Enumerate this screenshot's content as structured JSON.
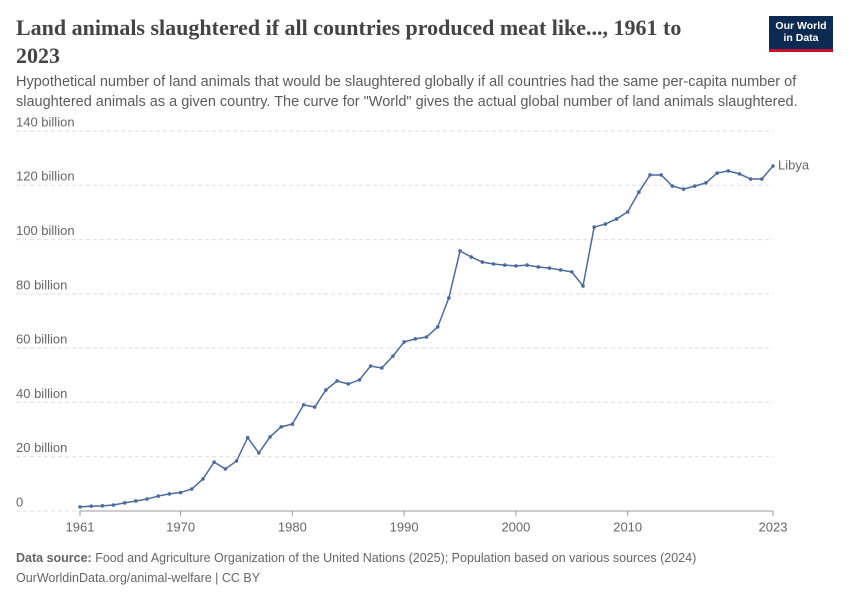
{
  "chart_data": {
    "type": "line",
    "title": "Land animals slaughtered if all countries produced meat like..., 1961 to 2023",
    "subtitle": "Hypothetical number of land animals that would be slaughtered globally if all countries had the same per-capita number of slaughtered animals as a given country. The curve for \"World\" gives the actual global number of land animals slaughtered.",
    "logo": [
      "Our World",
      "in Data"
    ],
    "source_label": "Data source:",
    "source": "Food and Agriculture Organization of the United Nations (2025); Population based on various sources (2024)",
    "url": "OurWorldinData.org/animal-welfare | CC BY",
    "x": [
      1961,
      1962,
      1963,
      1964,
      1965,
      1966,
      1967,
      1968,
      1969,
      1970,
      1971,
      1972,
      1973,
      1974,
      1975,
      1976,
      1977,
      1978,
      1979,
      1980,
      1981,
      1982,
      1983,
      1984,
      1985,
      1986,
      1987,
      1988,
      1989,
      1990,
      1991,
      1992,
      1993,
      1994,
      1995,
      1996,
      1997,
      1998,
      1999,
      2000,
      2001,
      2002,
      2003,
      2004,
      2005,
      2006,
      2007,
      2008,
      2009,
      2010,
      2011,
      2012,
      2013,
      2014,
      2015,
      2016,
      2017,
      2018,
      2019,
      2020,
      2021,
      2022,
      2023
    ],
    "series": [
      {
        "name": "Libya",
        "color": "#4c6a9c",
        "values": [
          1.5,
          1.8,
          1.9,
          2.2,
          3.0,
          3.7,
          4.4,
          5.5,
          6.3,
          6.8,
          8.1,
          11.8,
          18,
          15.5,
          18.4,
          27,
          21.4,
          27.3,
          31,
          32,
          39.1,
          38.3,
          44.6,
          47.9,
          46.8,
          48.3,
          53.4,
          52.7,
          57.1,
          62.3,
          63.4,
          64.1,
          67.8,
          78.5,
          95.8,
          93.6,
          91.7,
          91,
          90.6,
          90.3,
          90.6,
          89.9,
          89.5,
          88.8,
          88.1,
          82.9,
          104.6,
          105.7,
          107.6,
          110.2,
          117.5,
          123.8,
          123.8,
          119.7,
          118.6,
          119.7,
          120.9,
          124.5,
          125.3,
          124.2,
          122.3,
          122.3,
          127.1
        ]
      }
    ],
    "xlim": [
      1961,
      2023
    ],
    "xticks": [
      1961,
      1970,
      1980,
      1990,
      2000,
      2010,
      2023
    ],
    "ylim": [
      0,
      140
    ],
    "yticks": [
      0,
      {
        "value": 20,
        "label": "20 billion"
      },
      {
        "value": 40,
        "label": "40 billion"
      },
      {
        "value": 60,
        "label": "60 billion"
      },
      {
        "value": 80,
        "label": "80 billion"
      },
      {
        "value": 100,
        "label": "100 billion"
      },
      {
        "value": 120,
        "label": "120 billion"
      },
      {
        "value": 140,
        "label": "140 billion"
      }
    ],
    "grid": true
  }
}
